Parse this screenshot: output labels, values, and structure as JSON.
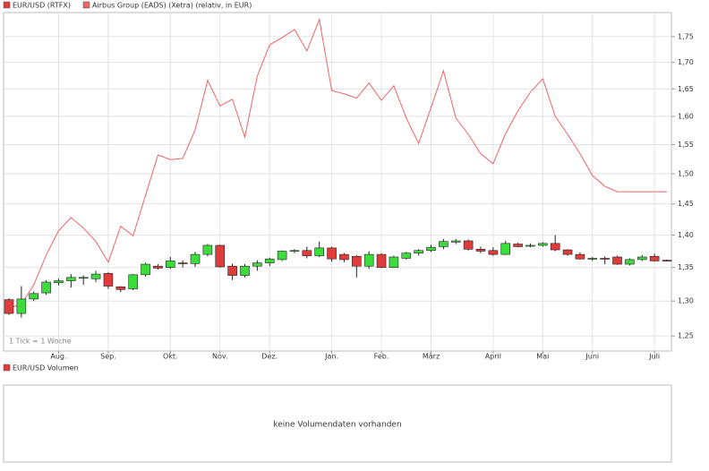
{
  "chart_data": {
    "type": "candlestick",
    "categories": [
      null,
      null,
      null,
      null,
      "Aug.",
      null,
      null,
      null,
      "Sep.",
      null,
      null,
      null,
      null,
      "Okt.",
      null,
      null,
      null,
      "Nov.",
      null,
      null,
      null,
      "Dez.",
      null,
      null,
      null,
      null,
      "Jan.",
      null,
      null,
      null,
      "Feb.",
      null,
      null,
      null,
      "März",
      null,
      null,
      null,
      null,
      "April",
      null,
      null,
      null,
      "Mai",
      null,
      null,
      null,
      "Juni",
      null,
      null,
      null,
      null,
      "Juli",
      null
    ],
    "series": [
      {
        "name": "EUR/USD (RTFX)",
        "color": "#e03c3c",
        "up_color": "#3cdc3c",
        "open": [
          1.302,
          1.282,
          1.303,
          1.312,
          1.327,
          1.33,
          1.334,
          1.333,
          1.341,
          1.321,
          1.318,
          1.339,
          1.352,
          1.35,
          1.357,
          1.356,
          1.37,
          1.384,
          1.352,
          1.338,
          1.352,
          1.357,
          1.362,
          1.375,
          1.376,
          1.368,
          1.38,
          1.37,
          1.367,
          1.352,
          1.37,
          1.35,
          1.364,
          1.372,
          1.376,
          1.382,
          1.389,
          1.391,
          1.378,
          1.376,
          1.37,
          1.386,
          1.383,
          1.384,
          1.387,
          1.377,
          1.37,
          1.363,
          1.364,
          1.366,
          1.355,
          1.362,
          1.367,
          1.361
        ],
        "high": [
          1.304,
          1.322,
          1.314,
          1.331,
          1.333,
          1.34,
          1.338,
          1.345,
          1.343,
          1.322,
          1.34,
          1.357,
          1.355,
          1.366,
          1.361,
          1.374,
          1.386,
          1.385,
          1.356,
          1.355,
          1.361,
          1.365,
          1.376,
          1.378,
          1.382,
          1.39,
          1.382,
          1.372,
          1.369,
          1.375,
          1.372,
          1.368,
          1.374,
          1.378,
          1.385,
          1.394,
          1.394,
          1.393,
          1.382,
          1.381,
          1.391,
          1.388,
          1.387,
          1.389,
          1.4,
          1.378,
          1.373,
          1.366,
          1.367,
          1.368,
          1.364,
          1.369,
          1.371,
          1.362
        ],
        "low": [
          1.28,
          1.276,
          1.3,
          1.309,
          1.323,
          1.32,
          1.324,
          1.328,
          1.318,
          1.313,
          1.316,
          1.336,
          1.347,
          1.348,
          1.35,
          1.351,
          1.367,
          1.35,
          1.331,
          1.335,
          1.345,
          1.352,
          1.36,
          1.372,
          1.364,
          1.366,
          1.359,
          1.358,
          1.335,
          1.348,
          1.349,
          1.349,
          1.362,
          1.368,
          1.374,
          1.378,
          1.386,
          1.376,
          1.372,
          1.368,
          1.369,
          1.381,
          1.381,
          1.382,
          1.375,
          1.368,
          1.362,
          1.36,
          1.355,
          1.354,
          1.353,
          1.36,
          1.359,
          1.359
        ],
        "close": [
          1.282,
          1.303,
          1.311,
          1.328,
          1.33,
          1.335,
          1.335,
          1.34,
          1.322,
          1.317,
          1.339,
          1.355,
          1.349,
          1.36,
          1.356,
          1.37,
          1.384,
          1.351,
          1.338,
          1.352,
          1.357,
          1.363,
          1.375,
          1.376,
          1.368,
          1.38,
          1.363,
          1.362,
          1.352,
          1.37,
          1.35,
          1.366,
          1.372,
          1.376,
          1.381,
          1.39,
          1.391,
          1.378,
          1.375,
          1.37,
          1.387,
          1.382,
          1.384,
          1.387,
          1.377,
          1.37,
          1.363,
          1.364,
          1.363,
          1.355,
          1.362,
          1.366,
          1.36,
          1.36
        ]
      },
      {
        "name": "Airbus Group (EADS) (Xetra) (relativ, in EUR)",
        "type": "line",
        "color": "#f06464",
        "values": [
          1.29,
          1.295,
          1.324,
          1.369,
          1.407,
          1.428,
          1.411,
          1.39,
          1.358,
          1.414,
          1.399,
          1.464,
          1.532,
          1.524,
          1.526,
          1.576,
          1.666,
          1.619,
          1.631,
          1.563,
          1.674,
          1.734,
          1.748,
          1.764,
          1.722,
          1.784,
          1.647,
          1.641,
          1.633,
          1.661,
          1.629,
          1.656,
          1.597,
          1.552,
          1.616,
          1.684,
          1.597,
          1.568,
          1.534,
          1.517,
          1.569,
          1.61,
          1.644,
          1.669,
          1.6,
          1.568,
          1.534,
          1.497,
          1.479,
          1.47,
          1.47,
          1.47,
          1.47,
          1.47
        ]
      }
    ],
    "ylim": [
      1.229,
      1.798
    ],
    "log_scale": true,
    "grid": true,
    "yticks": [
      {
        "value": 1.25,
        "label": "1,25"
      },
      {
        "value": 1.3,
        "label": "1,30"
      },
      {
        "value": 1.35,
        "label": "1,35"
      },
      {
        "value": 1.4,
        "label": "1,40"
      },
      {
        "value": 1.45,
        "label": "1,45"
      },
      {
        "value": 1.5,
        "label": "1,50"
      },
      {
        "value": 1.55,
        "label": "1,55"
      },
      {
        "value": 1.6,
        "label": "1,60"
      },
      {
        "value": 1.65,
        "label": "1,65"
      },
      {
        "value": 1.7,
        "label": "1,70"
      },
      {
        "value": 1.75,
        "label": "1,75"
      }
    ],
    "annotation": "1 Tick = 1 Woche",
    "volume_panel": {
      "legend": "EUR/USD Volumen",
      "message": "keine Volumendaten vorhanden"
    }
  }
}
